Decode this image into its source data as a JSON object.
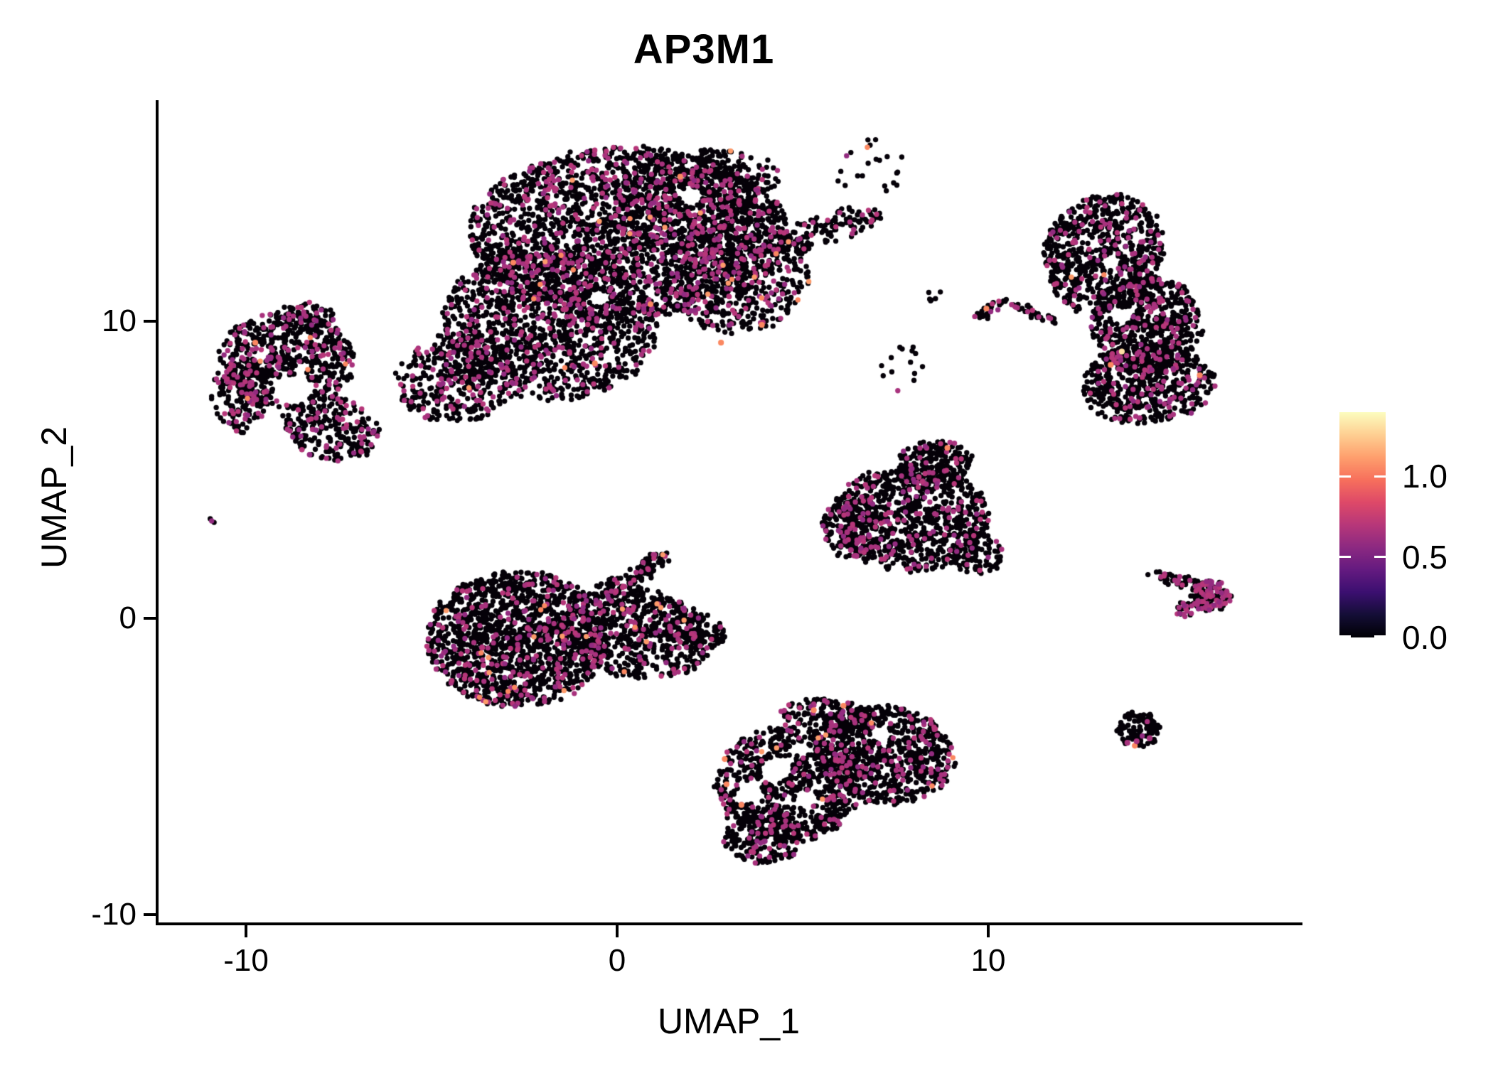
{
  "title": "AP3M1",
  "axes": {
    "x": {
      "label": "UMAP_1",
      "ticks": [
        {
          "value": -10,
          "label": "-10"
        },
        {
          "value": 0,
          "label": "0"
        },
        {
          "value": 10,
          "label": "10"
        }
      ]
    },
    "y": {
      "label": "UMAP_2",
      "ticks": [
        {
          "value": 10,
          "label": "10"
        },
        {
          "value": 0,
          "label": "0"
        },
        {
          "value": -10,
          "label": "-10"
        }
      ]
    }
  },
  "legend": {
    "ticks": [
      {
        "value": 1.0,
        "label": "1.0"
      },
      {
        "value": 0.5,
        "label": "0.5"
      },
      {
        "value": 0.0,
        "label": "0.0"
      }
    ],
    "value_max": 1.4,
    "colormap": "magma",
    "gradient_stops": [
      "#000004",
      "#140E36",
      "#3B0F70",
      "#641A80",
      "#8C2981",
      "#B73779",
      "#DE4968",
      "#F7705C",
      "#FE9F6D",
      "#FECF92",
      "#FCFDBF"
    ]
  },
  "chart_data": {
    "type": "scatter",
    "title": "AP3M1",
    "xlabel": "UMAP_1",
    "ylabel": "UMAP_2",
    "xlim": [
      -12.4,
      18.4
    ],
    "ylim": [
      -10.4,
      18.3
    ],
    "x_ticks": [
      -10,
      0,
      10
    ],
    "y_ticks": [
      -10,
      0,
      10
    ],
    "grid": false,
    "legend_position": "right",
    "expression_scale": {
      "min": 0.0,
      "max": 1.4,
      "label_ticks": [
        0.0,
        0.5,
        1.0
      ]
    },
    "point_radius_px": 3.7,
    "colors": {
      "zero": "#050108",
      "mid": [
        "#A8327D",
        "#B63679",
        "#932B80"
      ],
      "high": [
        "#FB8861",
        "#FD9A6A"
      ],
      "very_high": "#FDE0A4"
    },
    "n_points_approx": 14600,
    "clusters": [
      {
        "name": "top-center-large",
        "seed": 11,
        "mid_frac": 0.17,
        "high_frac": 0.004,
        "comps": [
          {
            "cx": 0.3,
            "cy": 13.0,
            "rx": 4.3,
            "ry": 2.9,
            "rot": 0,
            "n": 2400
          },
          {
            "cx": -1.8,
            "cy": 9.9,
            "rx": 2.9,
            "ry": 2.5,
            "rot": -10,
            "n": 1300
          },
          {
            "cx": -4.3,
            "cy": 8.1,
            "rx": 1.7,
            "ry": 1.5,
            "rot": 20,
            "n": 420
          },
          {
            "cx": 3.2,
            "cy": 11.9,
            "rx": 2.0,
            "ry": 2.3,
            "rot": 0,
            "n": 650
          },
          {
            "cx": 2.2,
            "cy": 14.6,
            "rx": 2.2,
            "ry": 1.2,
            "rot": 10,
            "n": 380
          },
          {
            "cx": 5.55,
            "cy": 13.1,
            "rx": 1.75,
            "ry": 0.5,
            "rot": 22,
            "n": 140
          },
          {
            "cx": 6.9,
            "cy": 15.2,
            "rx": 1.15,
            "ry": 1.0,
            "rot": 0,
            "n": 22
          }
        ],
        "holes": [
          {
            "cx": 2.0,
            "cy": 14.2,
            "r": 0.3
          },
          {
            "cx": -0.5,
            "cy": 10.8,
            "r": 0.28
          }
        ]
      },
      {
        "name": "left-donut",
        "seed": 22,
        "mid_frac": 0.22,
        "high_frac": 0.003,
        "comps": [
          {
            "cx": -8.9,
            "cy": 8.7,
            "rx": 1.85,
            "ry": 1.65,
            "rot": 0,
            "n": 620
          },
          {
            "cx": -7.7,
            "cy": 6.4,
            "rx": 1.35,
            "ry": 1.05,
            "rot": -30,
            "n": 260
          },
          {
            "cx": -10.15,
            "cy": 7.6,
            "rx": 0.75,
            "ry": 1.35,
            "rot": 0,
            "n": 170
          },
          {
            "cx": -8.35,
            "cy": 10.1,
            "rx": 0.8,
            "ry": 0.55,
            "rot": 0,
            "n": 90
          }
        ],
        "holes": [
          {
            "cx": -8.75,
            "cy": 7.7,
            "r": 0.52
          }
        ]
      },
      {
        "name": "tiny-left-pair",
        "seed": 33,
        "mid_frac": 0.4,
        "high_frac": 0,
        "comps": [
          {
            "cx": -10.9,
            "cy": 3.3,
            "rx": 0.14,
            "ry": 0.16,
            "rot": 0,
            "n": 3
          }
        ],
        "holes": []
      },
      {
        "name": "mid-left",
        "seed": 44,
        "mid_frac": 0.14,
        "high_frac": 0.011,
        "comps": [
          {
            "cx": -2.7,
            "cy": -0.7,
            "rx": 2.45,
            "ry": 2.3,
            "rot": 0,
            "n": 1500
          },
          {
            "cx": 0.5,
            "cy": -0.5,
            "rx": 2.1,
            "ry": 1.5,
            "rot": -15,
            "n": 650
          },
          {
            "cx": 2.1,
            "cy": -0.4,
            "rx": 0.85,
            "ry": 0.6,
            "rot": -20,
            "n": 110
          },
          {
            "cx": 0.8,
            "cy": 1.7,
            "rx": 0.8,
            "ry": 0.3,
            "rot": 42,
            "n": 80
          },
          {
            "cx": -0.1,
            "cy": 0.9,
            "rx": 0.6,
            "ry": 0.5,
            "rot": 0,
            "n": 60
          }
        ],
        "holes": []
      },
      {
        "name": "center-right-pentagon",
        "seed": 55,
        "mid_frac": 0.15,
        "high_frac": 0.001,
        "comps": [
          {
            "cx": 7.9,
            "cy": 3.4,
            "rx": 2.1,
            "ry": 1.8,
            "rot": 0,
            "n": 850
          },
          {
            "cx": 8.6,
            "cy": 5.2,
            "rx": 1.0,
            "ry": 0.8,
            "rot": 0,
            "n": 200
          },
          {
            "cx": 6.3,
            "cy": 3.1,
            "rx": 0.8,
            "ry": 1.05,
            "rot": 0,
            "n": 180
          },
          {
            "cx": 9.7,
            "cy": 2.2,
            "rx": 0.7,
            "ry": 0.7,
            "rot": 0,
            "n": 90
          }
        ],
        "holes": []
      },
      {
        "name": "bottom-center",
        "seed": 66,
        "mid_frac": 0.13,
        "high_frac": 0.006,
        "comps": [
          {
            "cx": 4.6,
            "cy": -5.6,
            "rx": 1.95,
            "ry": 2.0,
            "rot": 10,
            "n": 850
          },
          {
            "cx": 7.2,
            "cy": -4.6,
            "rx": 1.9,
            "ry": 1.65,
            "rot": -12,
            "n": 780
          },
          {
            "cx": 3.95,
            "cy": -7.4,
            "rx": 1.05,
            "ry": 0.9,
            "rot": 0,
            "n": 200
          },
          {
            "cx": 5.8,
            "cy": -3.3,
            "rx": 1.4,
            "ry": 0.55,
            "rot": -8,
            "n": 180
          }
        ],
        "holes": [
          {
            "cx": 4.3,
            "cy": -5.1,
            "r": 0.42
          },
          {
            "cx": 3.6,
            "cy": -5.9,
            "r": 0.32
          },
          {
            "cx": 5.1,
            "cy": -6.1,
            "r": 0.3
          },
          {
            "cx": 7.1,
            "cy": -3.9,
            "r": 0.28
          },
          {
            "cx": 4.9,
            "cy": -4.4,
            "r": 0.25
          }
        ]
      },
      {
        "name": "right-crescent",
        "seed": 77,
        "mid_frac": 0.13,
        "high_frac": 0.002,
        "comps": [
          {
            "cx": 13.1,
            "cy": 12.3,
            "rx": 1.6,
            "ry": 2.05,
            "rot": -12,
            "n": 750
          },
          {
            "cx": 14.25,
            "cy": 9.9,
            "rx": 1.5,
            "ry": 1.7,
            "rot": 0,
            "n": 650
          },
          {
            "cx": 14.3,
            "cy": 7.9,
            "rx": 1.8,
            "ry": 1.35,
            "rot": 8,
            "n": 550
          }
        ],
        "holes": [
          {
            "cx": 13.3,
            "cy": 12.0,
            "r": 0.26
          },
          {
            "cx": 13.6,
            "cy": 10.2,
            "r": 0.3
          },
          {
            "cx": 14.9,
            "cy": 11.8,
            "r": 0.35
          },
          {
            "cx": 15.5,
            "cy": 11.4,
            "r": 0.3
          }
        ]
      },
      {
        "name": "eyebrow-arc",
        "seed": 88,
        "mid_frac": 0.28,
        "high_frac": 0,
        "comps": [
          {
            "cx": 10.05,
            "cy": 10.4,
            "rx": 0.6,
            "ry": 0.17,
            "rot": 38,
            "n": 26
          },
          {
            "cx": 11.25,
            "cy": 10.3,
            "rx": 0.8,
            "ry": 0.18,
            "rot": -25,
            "n": 34
          }
        ],
        "holes": []
      },
      {
        "name": "sparse-middle-bits",
        "seed": 99,
        "mid_frac": 0.08,
        "high_frac": 0,
        "comps": [
          {
            "cx": 7.6,
            "cy": 8.4,
            "rx": 0.85,
            "ry": 0.8,
            "rot": 0,
            "n": 14
          },
          {
            "cx": 8.45,
            "cy": 10.9,
            "rx": 0.3,
            "ry": 0.25,
            "rot": 0,
            "n": 6
          }
        ],
        "holes": []
      },
      {
        "name": "right-small-comma",
        "seed": 111,
        "mid_frac": 0.34,
        "high_frac": 0,
        "comps": [
          {
            "cx": 15.05,
            "cy": 1.3,
            "rx": 0.8,
            "ry": 0.2,
            "rot": -14,
            "n": 45
          },
          {
            "cx": 16.0,
            "cy": 0.75,
            "rx": 0.55,
            "ry": 0.5,
            "rot": 0,
            "n": 150
          },
          {
            "cx": 15.35,
            "cy": 0.25,
            "rx": 0.3,
            "ry": 0.28,
            "rot": 0,
            "n": 25
          }
        ],
        "holes": []
      },
      {
        "name": "bottom-right-dot",
        "seed": 122,
        "mid_frac": 0.04,
        "high_frac": 0,
        "comps": [
          {
            "cx": 14.05,
            "cy": -3.75,
            "rx": 0.58,
            "ry": 0.6,
            "rot": 0,
            "n": 105
          }
        ],
        "holes": []
      }
    ],
    "extra_points": [
      {
        "x": 8.9,
        "y": 5.75,
        "level": "high"
      },
      {
        "x": 13.6,
        "y": 9.0,
        "level": "very_high"
      },
      {
        "x": 13.3,
        "y": 8.55,
        "level": "high"
      },
      {
        "x": 15.7,
        "y": 8.2,
        "level": "high"
      },
      {
        "x": 9.95,
        "y": 10.45,
        "level": "high"
      },
      {
        "x": 13.95,
        "y": -4.3,
        "level": "high"
      },
      {
        "x": 13.75,
        "y": -4.2,
        "level": "mid"
      },
      {
        "x": 14.0,
        "y": -4.15,
        "level": "mid"
      },
      {
        "x": 14.35,
        "y": -4.05,
        "level": "mid"
      },
      {
        "x": 2.9,
        "y": -4.75,
        "level": "high"
      },
      {
        "x": 2.95,
        "y": -5.6,
        "level": "high"
      },
      {
        "x": 3.35,
        "y": -6.3,
        "level": "high"
      },
      {
        "x": 5.3,
        "y": -3.1,
        "level": "high"
      },
      {
        "x": 6.1,
        "y": -2.95,
        "level": "high"
      },
      {
        "x": -9.75,
        "y": 9.3,
        "level": "high"
      },
      {
        "x": -2.8,
        "y": 12.0,
        "level": "high"
      },
      {
        "x": 1.7,
        "y": 14.9,
        "level": "high"
      },
      {
        "x": 0.9,
        "y": 10.6,
        "level": "high"
      },
      {
        "x": 2.8,
        "y": 9.3,
        "level": "high"
      },
      {
        "x": 3.9,
        "y": 9.9,
        "level": "high"
      },
      {
        "x": -0.6,
        "y": 8.6,
        "level": "high"
      },
      {
        "x": 6.15,
        "y": 2.6,
        "level": "mid"
      },
      {
        "x": 6.3,
        "y": 2.3,
        "level": "mid"
      },
      {
        "x": 6.2,
        "y": 2.9,
        "level": "mid"
      },
      {
        "x": 6.45,
        "y": 2.1,
        "level": "mid"
      }
    ]
  }
}
